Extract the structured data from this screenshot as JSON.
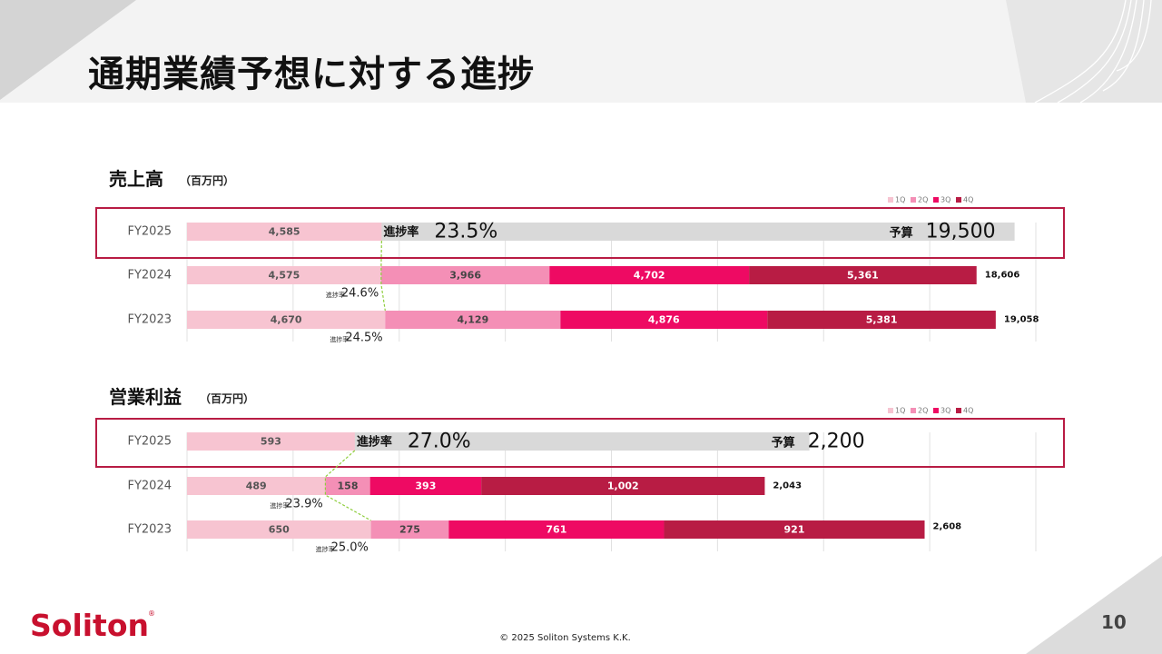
{
  "page": {
    "title": "通期業績予想に対する進捗",
    "copyright": "© 2025 Soliton Systems K.K.",
    "page_number": "10",
    "logo_text": "Soliton",
    "logo_mark": "®"
  },
  "colors": {
    "q1": "#f7c4d1",
    "q2": "#f48fb6",
    "q3": "#ee0a63",
    "q4": "#b81c44",
    "budget": "#d9d9d9",
    "highlight": "#b81c44",
    "connector": "#8fce3e",
    "grid": "#e0e0e0",
    "logo": "#c8102e"
  },
  "chart_data": [
    {
      "type": "bar",
      "orientation": "horizontal",
      "stacked": true,
      "title": "売上高",
      "unit_label": "（百万円）",
      "legend": [
        "1Q",
        "2Q",
        "3Q",
        "4Q"
      ],
      "legend_position": "top-right",
      "progress_label": "進捗率",
      "budget_label": "予算",
      "xlim": [
        0,
        20000
      ],
      "grid": true,
      "rows": [
        {
          "name": "FY2025",
          "values": [
            4585
          ],
          "value_labels": [
            "4,585"
          ],
          "budget": 19500,
          "budget_text": "19,500",
          "progress": "23.5%",
          "highlight": true
        },
        {
          "name": "FY2024",
          "values": [
            4575,
            3966,
            4702,
            5361
          ],
          "value_labels": [
            "4,575",
            "3,966",
            "4,702",
            "5,361"
          ],
          "total_text": "18,606",
          "progress": "24.6%"
        },
        {
          "name": "FY2023",
          "values": [
            4670,
            4129,
            4876,
            5381
          ],
          "value_labels": [
            "4,670",
            "4,129",
            "4,876",
            "5,381"
          ],
          "total_text": "19,058",
          "progress": "24.5%"
        }
      ]
    },
    {
      "type": "bar",
      "orientation": "horizontal",
      "stacked": true,
      "title": "営業利益",
      "unit_label": "（百万円）",
      "legend": [
        "1Q",
        "2Q",
        "3Q",
        "4Q"
      ],
      "legend_position": "top-right",
      "progress_label": "進捗率",
      "budget_label": "予算",
      "xlim": [
        0,
        3000
      ],
      "grid": true,
      "rows": [
        {
          "name": "FY2025",
          "values": [
            593
          ],
          "value_labels": [
            "593"
          ],
          "budget": 2200,
          "budget_text": "2,200",
          "progress": "27.0%",
          "highlight": true
        },
        {
          "name": "FY2024",
          "values": [
            489,
            158,
            393,
            1002
          ],
          "value_labels": [
            "489",
            "158",
            "393",
            "1,002"
          ],
          "total_text": "2,043",
          "progress": "23.9%"
        },
        {
          "name": "FY2023",
          "values": [
            650,
            275,
            761,
            921
          ],
          "value_labels": [
            "650",
            "275",
            "761",
            "921"
          ],
          "total_text": "2,608",
          "progress": "25.0%"
        }
      ]
    }
  ]
}
